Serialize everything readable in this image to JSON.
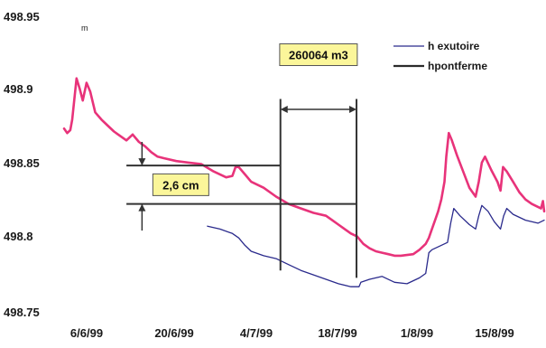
{
  "chart_data": {
    "type": "line",
    "unit_label": "m",
    "ylim": [
      498.75,
      498.95
    ],
    "y_ticks": [
      "498.95",
      "498.9",
      "498.85",
      "498.8",
      "498.75"
    ],
    "x_ticks": [
      "6/6/99",
      "20/6/99",
      "4/7/99",
      "18/7/99",
      "1/8/99",
      "15/8/99"
    ],
    "x_tick_days": [
      0,
      14,
      28,
      42,
      56,
      70
    ],
    "x_range_days": [
      0,
      77
    ],
    "grid": false,
    "legend_position": "top-right",
    "colors": {
      "h_exutoire": "#2a2a8c",
      "hpontferme": "#e8337a"
    },
    "series": [
      {
        "name": "h exutoire",
        "style": "line",
        "points": [
          [
            23.0,
            498.808
          ],
          [
            25.0,
            498.806
          ],
          [
            27.0,
            498.803
          ],
          [
            28.0,
            498.8
          ],
          [
            29.0,
            498.795
          ],
          [
            30.0,
            498.791
          ],
          [
            32.0,
            498.788
          ],
          [
            34.0,
            498.786
          ],
          [
            36.0,
            498.782
          ],
          [
            38.0,
            498.778
          ],
          [
            40.0,
            498.775
          ],
          [
            42.0,
            498.772
          ],
          [
            44.0,
            498.769
          ],
          [
            46.0,
            498.767
          ],
          [
            47.3,
            498.767
          ],
          [
            47.6,
            498.77
          ],
          [
            49.0,
            498.772
          ],
          [
            51.0,
            498.774
          ],
          [
            53.0,
            498.77
          ],
          [
            55.0,
            498.769
          ],
          [
            57.0,
            498.773
          ],
          [
            58.0,
            498.776
          ],
          [
            58.5,
            498.79
          ],
          [
            59.0,
            498.792
          ],
          [
            61.5,
            498.797
          ],
          [
            62.0,
            498.81
          ],
          [
            62.5,
            498.82
          ],
          [
            63.5,
            498.815
          ],
          [
            65.0,
            498.809
          ],
          [
            66.0,
            498.806
          ],
          [
            66.5,
            498.815
          ],
          [
            67.0,
            498.822
          ],
          [
            68.0,
            498.818
          ],
          [
            69.0,
            498.811
          ],
          [
            70.0,
            498.806
          ],
          [
            70.5,
            498.815
          ],
          [
            71.0,
            498.82
          ],
          [
            72.0,
            498.816
          ],
          [
            74.0,
            498.812
          ],
          [
            76.0,
            498.81
          ],
          [
            77.0,
            498.812
          ]
        ]
      },
      {
        "name": "hpontferme",
        "style": "line",
        "points": [
          [
            0.0,
            498.874
          ],
          [
            0.5,
            498.871
          ],
          [
            1.0,
            498.873
          ],
          [
            1.3,
            498.88
          ],
          [
            2.0,
            498.908
          ],
          [
            2.5,
            498.901
          ],
          [
            3.0,
            498.893
          ],
          [
            3.6,
            498.905
          ],
          [
            4.2,
            498.899
          ],
          [
            5.0,
            498.885
          ],
          [
            6.0,
            498.88
          ],
          [
            7.0,
            498.876
          ],
          [
            8.0,
            498.872
          ],
          [
            9.0,
            498.869
          ],
          [
            10.0,
            498.866
          ],
          [
            11.0,
            498.87
          ],
          [
            12.0,
            498.865
          ],
          [
            13.0,
            498.862
          ],
          [
            14.0,
            498.858
          ],
          [
            15.0,
            498.855
          ],
          [
            16.0,
            498.854
          ],
          [
            18.0,
            498.852
          ],
          [
            20.0,
            498.851
          ],
          [
            22.0,
            498.85
          ],
          [
            24.0,
            498.845
          ],
          [
            25.0,
            498.843
          ],
          [
            26.0,
            498.841
          ],
          [
            27.0,
            498.842
          ],
          [
            27.5,
            498.848
          ],
          [
            28.0,
            498.848
          ],
          [
            29.0,
            498.843
          ],
          [
            30.0,
            498.838
          ],
          [
            32.0,
            498.834
          ],
          [
            34.0,
            498.828
          ],
          [
            36.0,
            498.823
          ],
          [
            38.0,
            498.82
          ],
          [
            40.0,
            498.817
          ],
          [
            42.0,
            498.815
          ],
          [
            43.0,
            498.812
          ],
          [
            44.0,
            498.809
          ],
          [
            45.0,
            498.806
          ],
          [
            46.0,
            498.803
          ],
          [
            47.0,
            498.801
          ],
          [
            48.0,
            498.796
          ],
          [
            49.0,
            498.793
          ],
          [
            50.0,
            498.791
          ],
          [
            51.0,
            498.79
          ],
          [
            52.0,
            498.789
          ],
          [
            53.0,
            498.788
          ],
          [
            54.0,
            498.788
          ],
          [
            56.0,
            498.789
          ],
          [
            57.0,
            498.792
          ],
          [
            58.0,
            498.796
          ],
          [
            58.5,
            498.8
          ],
          [
            59.0,
            498.806
          ],
          [
            59.5,
            498.812
          ],
          [
            60.0,
            498.818
          ],
          [
            60.5,
            498.826
          ],
          [
            61.0,
            498.838
          ],
          [
            61.3,
            498.855
          ],
          [
            61.7,
            498.871
          ],
          [
            62.2,
            498.866
          ],
          [
            63.0,
            498.856
          ],
          [
            64.0,
            498.845
          ],
          [
            65.0,
            498.834
          ],
          [
            66.0,
            498.828
          ],
          [
            66.5,
            498.838
          ],
          [
            67.0,
            498.851
          ],
          [
            67.5,
            498.855
          ],
          [
            68.5,
            498.846
          ],
          [
            69.5,
            498.838
          ],
          [
            70.0,
            498.832
          ],
          [
            70.4,
            498.848
          ],
          [
            71.0,
            498.845
          ],
          [
            72.0,
            498.838
          ],
          [
            73.0,
            498.831
          ],
          [
            74.0,
            498.826
          ],
          [
            75.0,
            498.823
          ],
          [
            76.0,
            498.821
          ],
          [
            76.5,
            498.82
          ],
          [
            76.8,
            498.825
          ],
          [
            77.0,
            498.818
          ]
        ]
      }
    ],
    "annotations": {
      "volume": {
        "label": "260064 m3",
        "from_day": 34.7,
        "to_day": 46.9,
        "y": 498.887,
        "label_y": 498.924,
        "line_top_y": 498.894,
        "left_line_bottom_y": 498.778,
        "right_line_bottom_y": 498.773
      },
      "drawdown": {
        "label": "2,6 cm",
        "level_high": 498.849,
        "level_low": 498.823,
        "left_from_day": 10.0,
        "high_to_day": 34.7,
        "low_to_day": 46.9,
        "arrow_day": 12.5,
        "arrow_top_y": 498.865,
        "arrow_bottom_y": 498.805,
        "label_y": 498.836
      }
    }
  }
}
